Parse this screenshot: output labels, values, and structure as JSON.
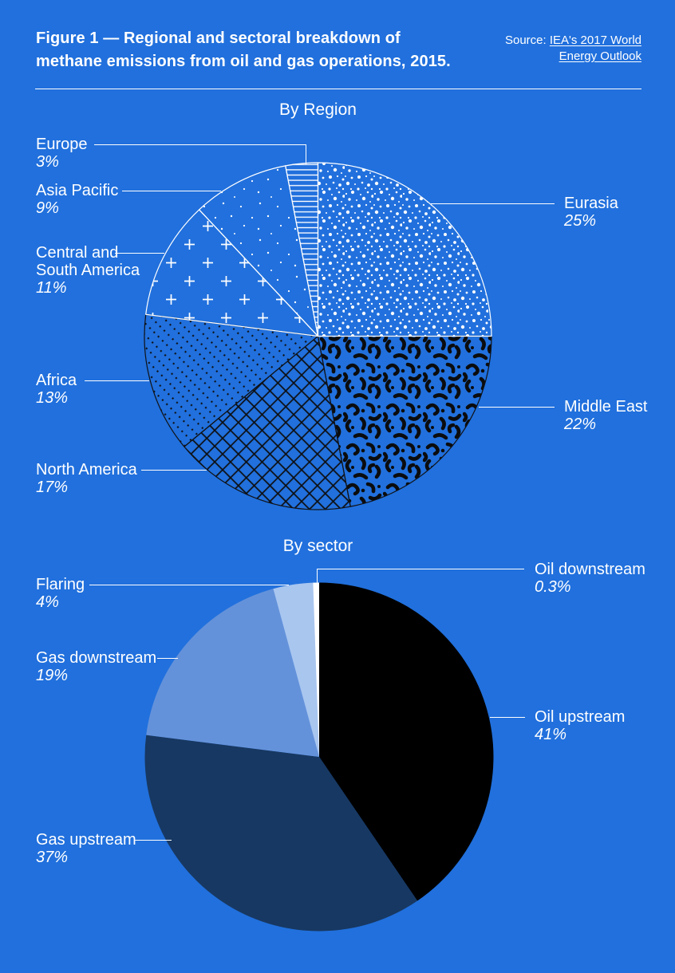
{
  "page": {
    "background_color": "#2170DD",
    "text_color": "#FFFFFF"
  },
  "header": {
    "title": "Figure 1 — Regional and sectoral breakdown of methane emissions from oil and gas operations, 2015.",
    "source_prefix": "Source:",
    "source_link": "IEA's 2017 World Energy Outlook"
  },
  "chart_data": [
    {
      "type": "pie",
      "title": "By Region",
      "start_angle_deg": 0,
      "direction": "clockwise",
      "legend_position": "leader-line labels around pie",
      "slices": [
        {
          "label": "Eurasia",
          "value": 25,
          "display": "25%",
          "pattern": "dots-dense",
          "stroke": "#FFFFFF"
        },
        {
          "label": "Middle East",
          "value": 22,
          "display": "22%",
          "pattern": "vermiculate",
          "stroke": "#101216"
        },
        {
          "label": "North America",
          "value": 17,
          "display": "17%",
          "pattern": "crosshatch",
          "stroke": "#101216"
        },
        {
          "label": "Africa",
          "value": 13,
          "display": "13%",
          "pattern": "diag-dots",
          "stroke": "#101216"
        },
        {
          "label": "Central and South America",
          "value": 11,
          "display": "11%",
          "pattern": "plus-marks",
          "stroke": "#FFFFFF"
        },
        {
          "label": "Asia Pacific",
          "value": 9,
          "display": "9%",
          "pattern": "dots-sparse",
          "stroke": "#FFFFFF"
        },
        {
          "label": "Europe",
          "value": 3,
          "display": "3%",
          "pattern": "hlines",
          "stroke": "#FFFFFF"
        }
      ]
    },
    {
      "type": "pie",
      "title": "By sector",
      "start_angle_deg": 0,
      "direction": "clockwise",
      "legend_position": "leader-line labels around pie",
      "slices": [
        {
          "label": "Oil upstream",
          "value": 41,
          "display": "41%",
          "color": "#000000"
        },
        {
          "label": "Gas upstream",
          "value": 37,
          "display": "37%",
          "color": "#173862"
        },
        {
          "label": "Gas downstream",
          "value": 19,
          "display": "19%",
          "color": "#6492DA"
        },
        {
          "label": "Flaring",
          "value": 4,
          "display": "4%",
          "color": "#A9C6EF"
        },
        {
          "label": "Oil downstream",
          "value": 0.3,
          "display": "0.3%",
          "color": "#FFFFFF"
        }
      ]
    }
  ]
}
